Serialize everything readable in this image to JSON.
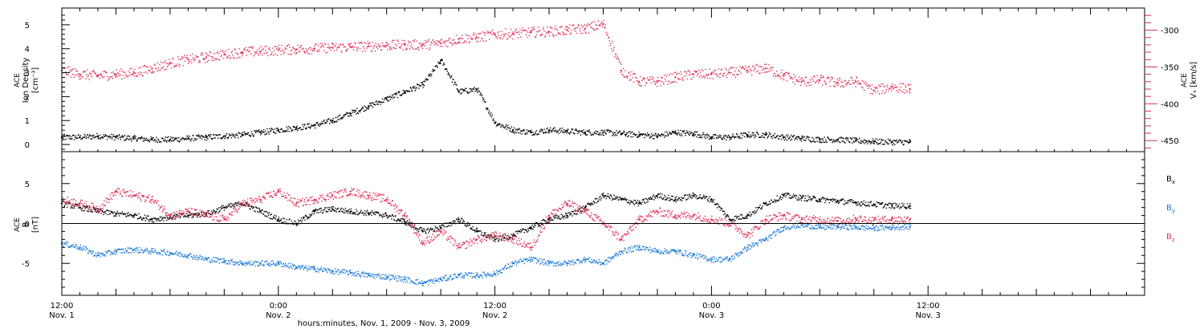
{
  "figure": {
    "xlabel": "hours:minutes, Nov.  1, 2009 - Nov.  3, 2009",
    "x_ticks": [
      {
        "top": "12:00",
        "bottom": "Nov. 1"
      },
      {
        "top": "0:00",
        "bottom": "Nov. 2"
      },
      {
        "top": "12:00",
        "bottom": "Nov. 2"
      },
      {
        "top": "0:00",
        "bottom": "Nov. 3"
      },
      {
        "top": "12:00",
        "bottom": "Nov. 3"
      }
    ]
  },
  "colors": {
    "black": "#000000",
    "red": "#e0305a",
    "blue": "#1e7ad8"
  },
  "chart_data": [
    {
      "type": "scatter",
      "panel": "plasma",
      "x_unit": "hours since Nov 1 12:00",
      "xlim": [
        0,
        60
      ],
      "x_ticks": [
        0,
        12,
        24,
        36,
        48
      ],
      "ylabel_left": [
        "ACE",
        "Ion Density",
        "[cm⁻³]"
      ],
      "ylim_left": [
        -0.3,
        5.7
      ],
      "yticks_left": [
        "0",
        "1",
        "2",
        "3",
        "4",
        "5"
      ],
      "ylabel_right": [
        "ACE",
        "Vₓ [km/s]"
      ],
      "ylim_right": [
        -465,
        -270
      ],
      "yticks_right": [
        "-300",
        "-350",
        "-400",
        "-450"
      ],
      "series": [
        {
          "name": "Ion Density",
          "axis": "left",
          "color": "#000000",
          "x": [
            0,
            1,
            2,
            3,
            4,
            5,
            6,
            7,
            8,
            9,
            10,
            11,
            12,
            13,
            14,
            15,
            16,
            17,
            18,
            19,
            20,
            21,
            22,
            23,
            24,
            25,
            26,
            27,
            28,
            29,
            30,
            31,
            32,
            33,
            34,
            35,
            36,
            37,
            38,
            39,
            40,
            41,
            42,
            43,
            44,
            45,
            46,
            47
          ],
          "y": [
            0.3,
            0.3,
            0.35,
            0.3,
            0.25,
            0.2,
            0.2,
            0.25,
            0.3,
            0.35,
            0.4,
            0.5,
            0.6,
            0.7,
            0.8,
            1.0,
            1.3,
            1.6,
            1.9,
            2.2,
            2.5,
            3.5,
            2.2,
            2.3,
            0.9,
            0.6,
            0.5,
            0.6,
            0.55,
            0.5,
            0.5,
            0.45,
            0.4,
            0.35,
            0.5,
            0.45,
            0.3,
            0.3,
            0.4,
            0.4,
            0.3,
            0.25,
            0.2,
            0.2,
            0.15,
            0.12,
            0.1,
            0.1
          ]
        },
        {
          "name": "Vx",
          "axis": "right",
          "color": "#e0305a",
          "x": [
            0,
            1,
            2,
            3,
            4,
            5,
            6,
            7,
            8,
            9,
            10,
            11,
            12,
            13,
            14,
            15,
            16,
            17,
            18,
            19,
            20,
            21,
            22,
            23,
            24,
            25,
            26,
            27,
            28,
            29,
            30,
            31,
            32,
            33,
            34,
            35,
            36,
            37,
            38,
            39,
            40,
            41,
            42,
            43,
            44,
            45,
            46,
            47
          ],
          "y": [
            -355,
            -360,
            -362,
            -360,
            -358,
            -352,
            -345,
            -340,
            -337,
            -333,
            -330,
            -329,
            -327,
            -326,
            -325,
            -324,
            -323,
            -322,
            -321,
            -320,
            -320,
            -318,
            -312,
            -310,
            -306,
            -305,
            -303,
            -302,
            -300,
            -298,
            -292,
            -355,
            -370,
            -370,
            -364,
            -360,
            -360,
            -358,
            -355,
            -352,
            -362,
            -370,
            -368,
            -372,
            -370,
            -382,
            -377,
            -380
          ]
        }
      ]
    },
    {
      "type": "scatter",
      "panel": "magnetic field",
      "x_unit": "hours since Nov 1 12:00",
      "xlim": [
        0,
        60
      ],
      "x_ticks": [
        0,
        12,
        24,
        36,
        48
      ],
      "ylabel": [
        "ACE",
        "B",
        "[nT]"
      ],
      "ylim": [
        -9,
        9
      ],
      "yticks": [
        "5",
        "0",
        "-5"
      ],
      "series": [
        {
          "name": "Bx",
          "label": "B",
          "subscript": "x",
          "color": "#000000",
          "x": [
            0,
            1,
            2,
            3,
            4,
            5,
            6,
            7,
            8,
            9,
            10,
            11,
            12,
            13,
            14,
            15,
            16,
            17,
            18,
            19,
            20,
            21,
            22,
            23,
            24,
            25,
            26,
            27,
            28,
            29,
            30,
            31,
            32,
            33,
            34,
            35,
            36,
            37,
            38,
            39,
            40,
            41,
            42,
            43,
            44,
            45,
            46,
            47
          ],
          "y": [
            2.5,
            2.0,
            1.5,
            1.2,
            1.0,
            0.5,
            0.8,
            1.0,
            1.2,
            2.0,
            2.5,
            1.5,
            0.5,
            0.0,
            1.5,
            1.8,
            1.5,
            1.3,
            1.0,
            0.2,
            -1.0,
            -0.5,
            0.5,
            -1.0,
            -2.0,
            -1.5,
            -0.5,
            0.5,
            1.0,
            2.0,
            3.5,
            3.0,
            2.5,
            3.5,
            3.0,
            3.5,
            3.0,
            0.5,
            1.0,
            2.5,
            3.5,
            3.2,
            3.0,
            2.8,
            2.6,
            2.4,
            2.2,
            2.2
          ]
        },
        {
          "name": "By",
          "label": "B",
          "subscript": "y",
          "color": "#1e7ad8",
          "x": [
            0,
            1,
            2,
            3,
            4,
            5,
            6,
            7,
            8,
            9,
            10,
            11,
            12,
            13,
            14,
            15,
            16,
            17,
            18,
            19,
            20,
            21,
            22,
            23,
            24,
            25,
            26,
            27,
            28,
            29,
            30,
            31,
            32,
            33,
            34,
            35,
            36,
            37,
            38,
            39,
            40,
            41,
            42,
            43,
            44,
            45,
            46,
            47
          ],
          "y": [
            -2.5,
            -3.0,
            -4.0,
            -3.5,
            -3.3,
            -3.5,
            -3.7,
            -4.0,
            -4.5,
            -4.7,
            -5.0,
            -5.0,
            -5.0,
            -5.5,
            -5.7,
            -6.0,
            -6.2,
            -6.5,
            -6.7,
            -7.0,
            -7.5,
            -7.0,
            -6.5,
            -6.5,
            -6.3,
            -5.0,
            -4.5,
            -5.0,
            -5.0,
            -4.5,
            -5.0,
            -3.5,
            -3.0,
            -3.5,
            -3.5,
            -4.0,
            -4.5,
            -4.5,
            -3.0,
            -2.0,
            -0.5,
            -0.2,
            -0.5,
            -0.4,
            -0.5,
            -0.6,
            -0.5,
            -0.4
          ]
        },
        {
          "name": "Bz",
          "label": "B",
          "subscript": "z",
          "color": "#e0305a",
          "x": [
            0,
            1,
            2,
            3,
            4,
            5,
            6,
            7,
            8,
            9,
            10,
            11,
            12,
            13,
            14,
            15,
            16,
            17,
            18,
            19,
            20,
            21,
            22,
            23,
            24,
            25,
            26,
            27,
            28,
            29,
            30,
            31,
            32,
            33,
            34,
            35,
            36,
            37,
            38,
            39,
            40,
            41,
            42,
            43,
            44,
            45,
            46,
            47
          ],
          "y": [
            3.0,
            2.5,
            1.8,
            4.0,
            3.5,
            3.0,
            1.0,
            1.5,
            1.0,
            0.5,
            2.5,
            3.0,
            4.0,
            2.5,
            3.0,
            3.5,
            4.0,
            3.5,
            3.0,
            1.0,
            -2.5,
            -1.0,
            -3.0,
            -2.0,
            -1.5,
            -2.0,
            -3.0,
            1.0,
            2.5,
            1.5,
            0.0,
            -2.0,
            0.5,
            1.5,
            1.0,
            1.0,
            0.5,
            0.0,
            -1.5,
            0.5,
            1.0,
            0.5,
            0.5,
            0.3,
            0.6,
            0.4,
            0.5,
            0.5
          ]
        }
      ]
    }
  ]
}
